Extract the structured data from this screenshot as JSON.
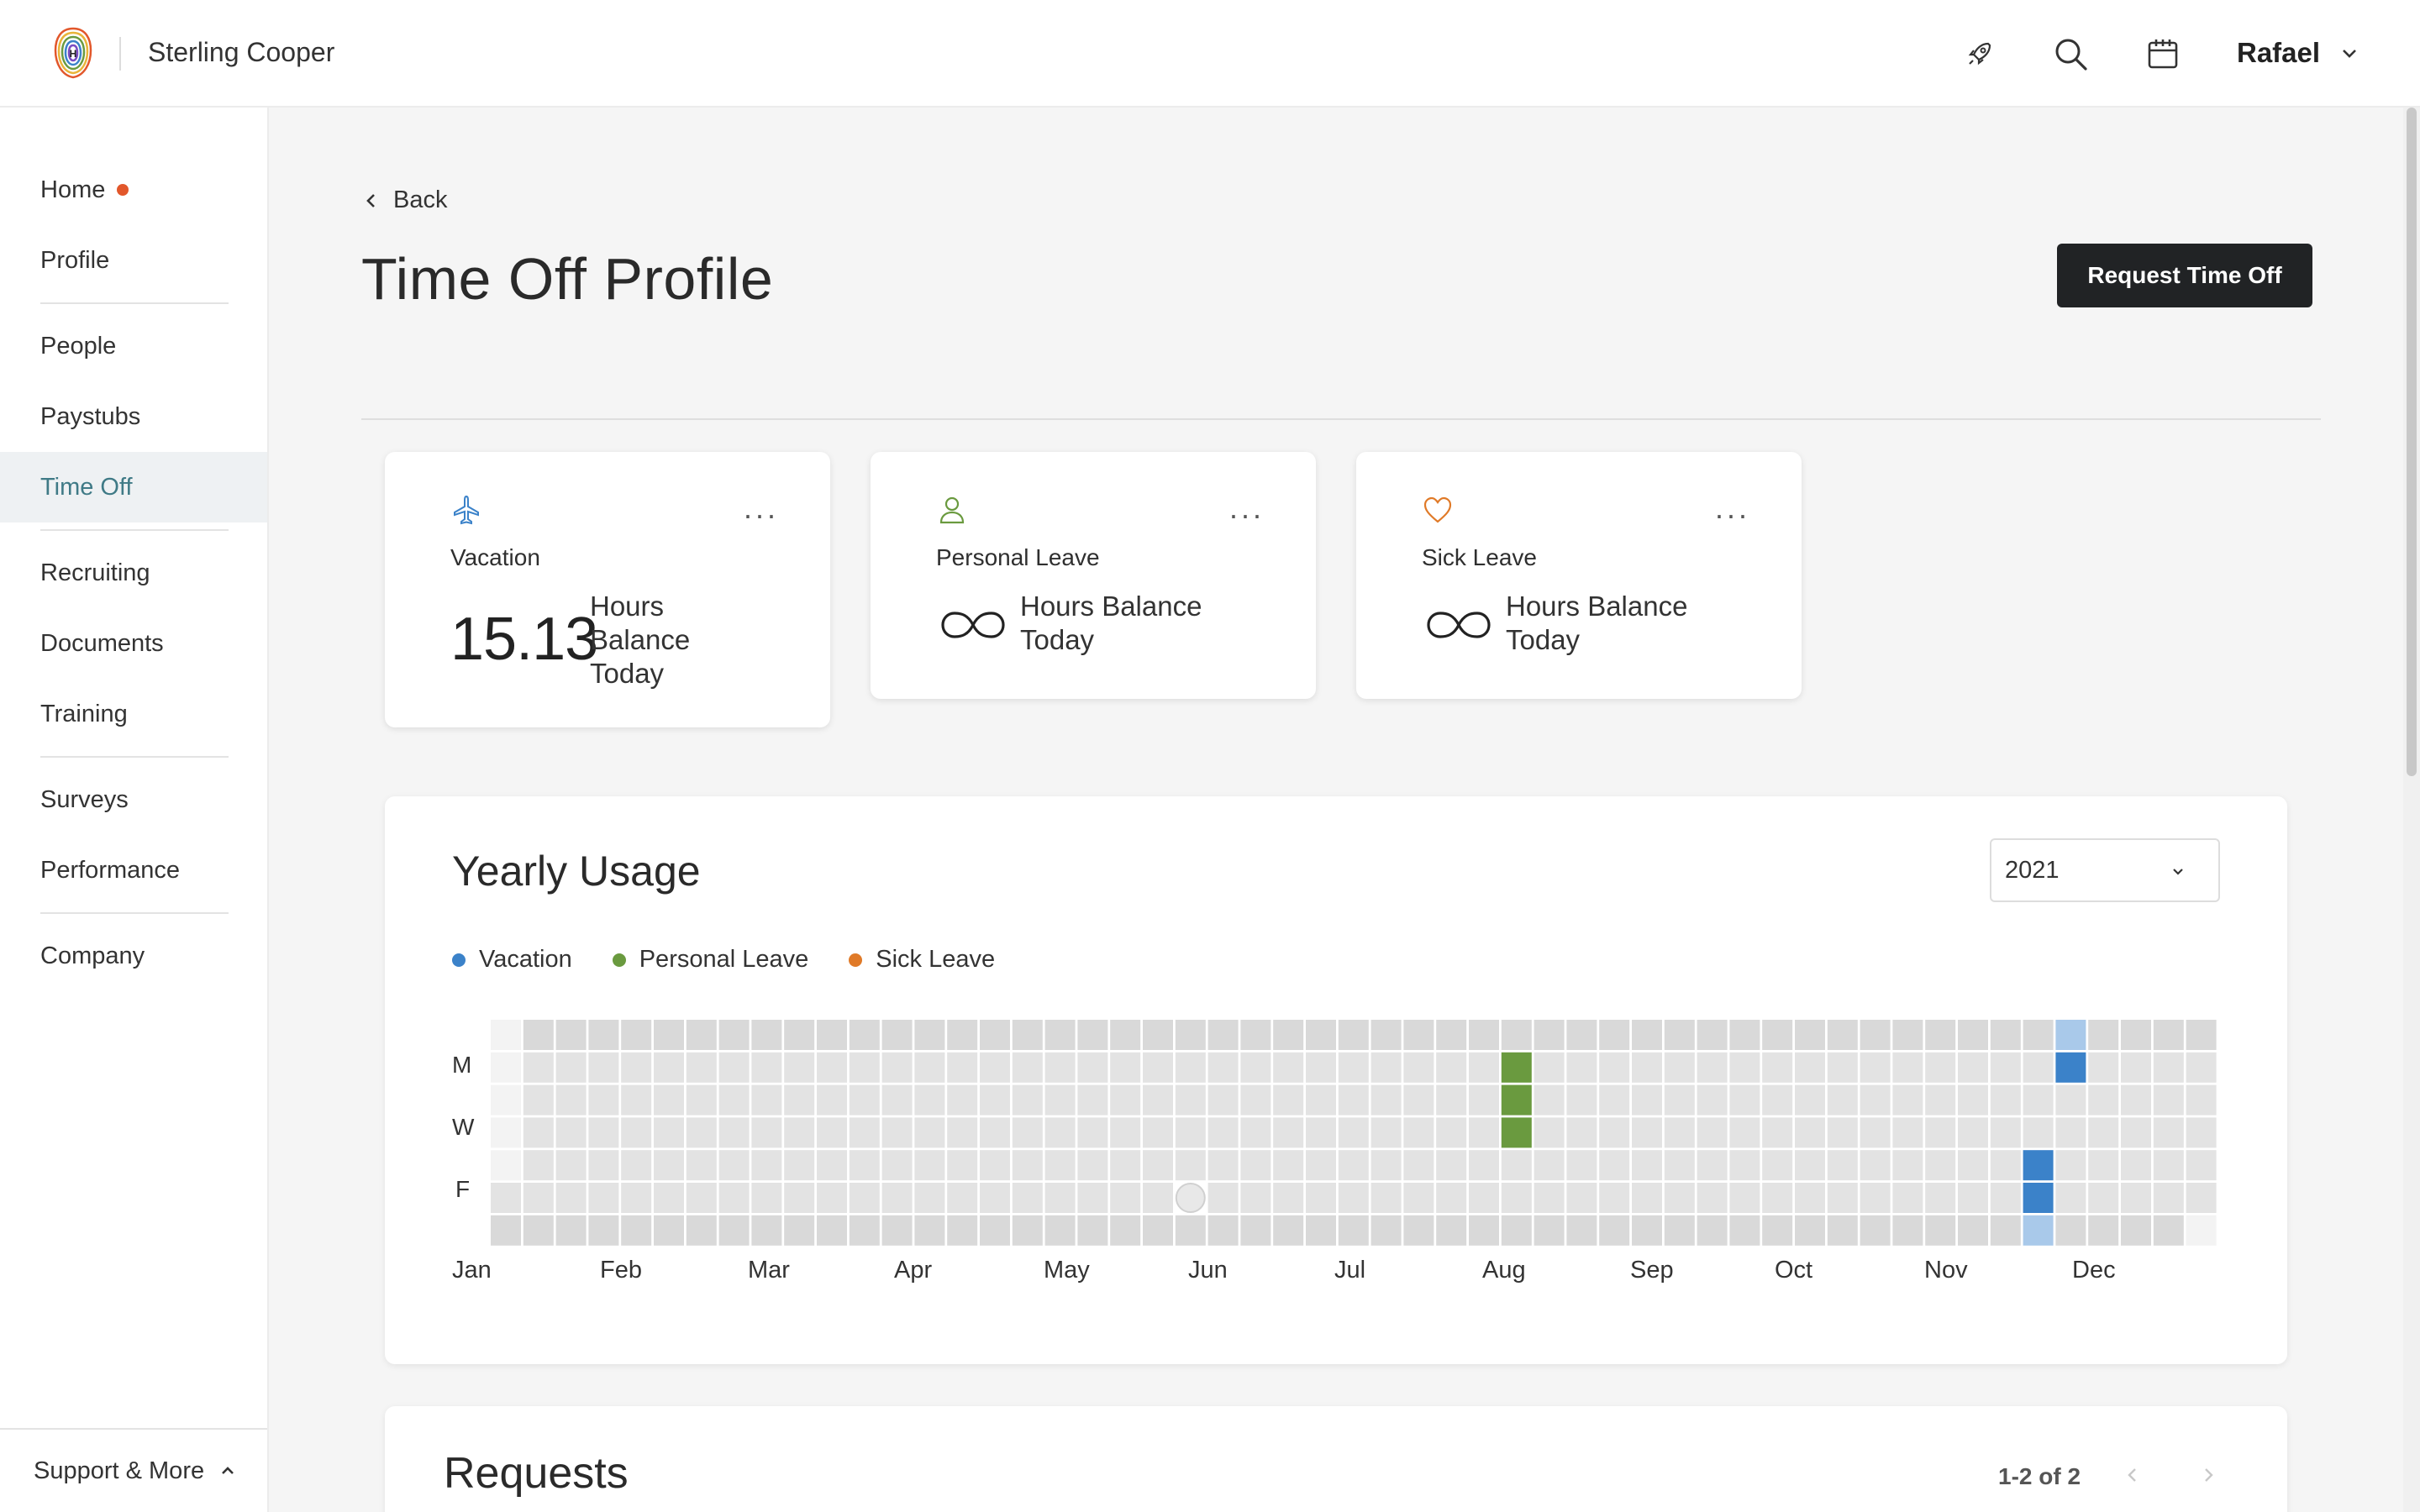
{
  "header": {
    "company": "Sterling Cooper",
    "logo_letter": "H",
    "user": "Rafael",
    "icons": [
      "rocket-icon",
      "search-icon",
      "calendar-icon",
      "chevron-down-icon"
    ]
  },
  "sidebar": {
    "items": [
      {
        "label": "Home",
        "badge": true
      },
      {
        "label": "Profile"
      },
      {
        "label": "People"
      },
      {
        "label": "Paystubs"
      },
      {
        "label": "Time Off",
        "active": true
      },
      {
        "label": "Recruiting"
      },
      {
        "label": "Documents"
      },
      {
        "label": "Training"
      },
      {
        "label": "Surveys"
      },
      {
        "label": "Performance"
      },
      {
        "label": "Company"
      }
    ],
    "support": "Support & More"
  },
  "main": {
    "back_label": "Back",
    "title": "Time Off Profile",
    "request_button": "Request Time Off"
  },
  "cards": [
    {
      "title": "Vacation",
      "value": "15.13",
      "balance_label": "Hours Balance Today",
      "line1": "Hours",
      "line2": "Balance",
      "line3": "Today",
      "icon": "airplane-icon",
      "color": "#3b82c9"
    },
    {
      "title": "Personal Leave",
      "value": "unlimited",
      "line1": "Hours Balance",
      "line2": "Today",
      "icon": "person-icon",
      "color": "#6a9a3f"
    },
    {
      "title": "Sick Leave",
      "value": "unlimited",
      "line1": "Hours Balance",
      "line2": "Today",
      "icon": "heart-icon",
      "color": "#e07a28"
    }
  ],
  "usage": {
    "title": "Yearly Usage",
    "year": "2021",
    "legend": [
      {
        "label": "Vacation",
        "color": "#3b82c9"
      },
      {
        "label": "Personal Leave",
        "color": "#6a9a3f"
      },
      {
        "label": "Sick Leave",
        "color": "#e07a28"
      }
    ],
    "day_labels": [
      "M",
      "W",
      "F"
    ],
    "months": [
      "Jan",
      "Feb",
      "Mar",
      "Apr",
      "May",
      "Jun",
      "Jul",
      "Aug",
      "Sep",
      "Oct",
      "Nov",
      "Dec"
    ],
    "colors": {
      "empty": "#e3e3e3",
      "weekend": "#d9d9d9",
      "vacation": "#3b82c9",
      "vacation_light": "#a9c9ea",
      "personal": "#6a9a3f"
    },
    "marked_days": [
      {
        "date": "2021-08-02",
        "type": "personal"
      },
      {
        "date": "2021-08-03",
        "type": "personal"
      },
      {
        "date": "2021-08-04",
        "type": "personal"
      },
      {
        "date": "2021-11-25",
        "type": "vacation"
      },
      {
        "date": "2021-11-26",
        "type": "vacation"
      },
      {
        "date": "2021-11-27",
        "type": "vacation_light"
      },
      {
        "date": "2021-11-28",
        "type": "vacation_light"
      },
      {
        "date": "2021-11-29",
        "type": "vacation"
      }
    ],
    "holiday_marker": "2021-05-28"
  },
  "requests": {
    "title": "Requests",
    "pager": "1-2 of 2"
  }
}
